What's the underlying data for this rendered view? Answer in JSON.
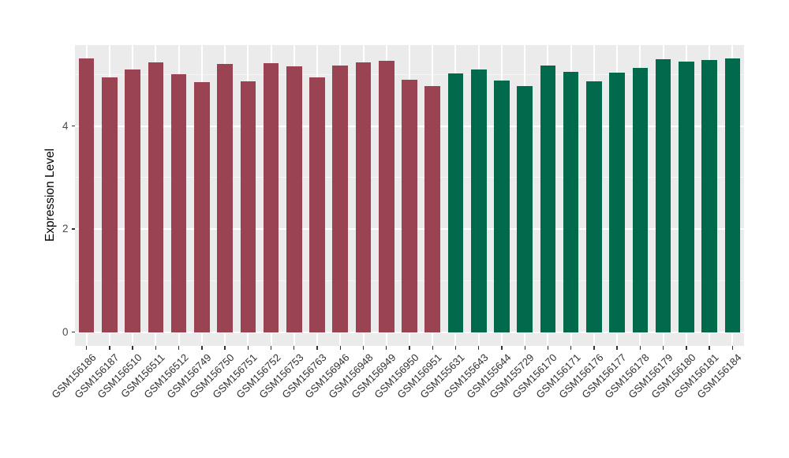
{
  "chart_data": {
    "type": "bar",
    "title": "",
    "xlabel": "",
    "ylabel": "Expression Level",
    "legend_position": "none",
    "grid": true,
    "panel_background": "#EBEBEB",
    "gridline_color": "#FFFFFF",
    "axis_text_color": "#303030",
    "y_ticks": [
      0,
      2,
      4
    ],
    "y_minor_ticks": [
      1,
      3,
      5
    ],
    "ylim": [
      -0.27,
      5.57
    ],
    "categories": [
      "GSM156186",
      "GSM156187",
      "GSM156510",
      "GSM156511",
      "GSM156512",
      "GSM156749",
      "GSM156750",
      "GSM156751",
      "GSM156752",
      "GSM156753",
      "GSM156763",
      "GSM156946",
      "GSM156948",
      "GSM156949",
      "GSM156950",
      "GSM156951",
      "GSM155631",
      "GSM155643",
      "GSM155644",
      "GSM155729",
      "GSM156170",
      "GSM156171",
      "GSM156176",
      "GSM156177",
      "GSM156178",
      "GSM156179",
      "GSM156180",
      "GSM156181",
      "GSM156184"
    ],
    "values": [
      5.31,
      4.95,
      5.1,
      5.23,
      5.0,
      4.85,
      5.21,
      4.86,
      5.22,
      5.15,
      4.95,
      5.17,
      5.24,
      5.26,
      4.9,
      4.78,
      5.02,
      5.1,
      4.88,
      4.77,
      5.17,
      5.05,
      4.86,
      5.04,
      5.13,
      5.29,
      5.25,
      5.28,
      5.31
    ],
    "group_index": [
      0,
      0,
      0,
      0,
      0,
      0,
      0,
      0,
      0,
      0,
      0,
      0,
      0,
      0,
      0,
      0,
      1,
      1,
      1,
      1,
      1,
      1,
      1,
      1,
      1,
      1,
      1,
      1,
      1
    ],
    "group_colors": [
      "#9A4453",
      "#016A4C"
    ]
  }
}
